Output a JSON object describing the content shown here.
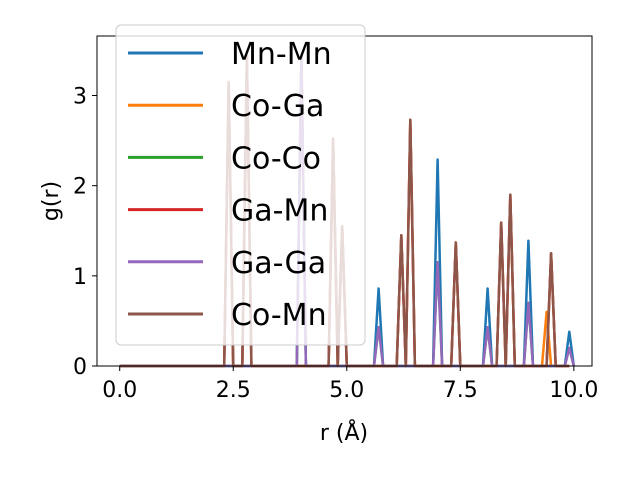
{
  "chart_data": {
    "type": "line",
    "xlabel": "r (Å)",
    "ylabel": "g(r)",
    "xlim": [
      -0.5,
      10.4
    ],
    "ylim": [
      0,
      3.66
    ],
    "xticks": [
      0.0,
      2.5,
      5.0,
      7.5,
      10.0
    ],
    "xtick_labels": [
      "0.0",
      "2.5",
      "5.0",
      "7.5",
      "10.0"
    ],
    "yticks": [
      0,
      1,
      2,
      3
    ],
    "ytick_labels": [
      "0",
      "1",
      "2",
      "3"
    ],
    "grid": false,
    "legend_position": "top-left",
    "series": [
      {
        "name": "Mn-Mn",
        "color": "#1f77b4",
        "peaks": [
          [
            4.0,
            3.45
          ],
          [
            5.7,
            0.86
          ],
          [
            7.0,
            2.29
          ],
          [
            8.1,
            0.86
          ],
          [
            9.0,
            1.39
          ],
          [
            9.9,
            0.38
          ]
        ]
      },
      {
        "name": "Co-Ga",
        "color": "#ff7f0e",
        "peaks": [
          [
            2.4,
            3.15
          ],
          [
            2.8,
            3.45
          ],
          [
            4.7,
            2.52
          ],
          [
            4.9,
            1.55
          ],
          [
            6.2,
            1.45
          ],
          [
            6.4,
            2.73
          ],
          [
            7.4,
            1.37
          ],
          [
            8.4,
            1.59
          ],
          [
            8.6,
            1.9
          ],
          [
            9.4,
            0.6
          ],
          [
            9.5,
            1.25
          ]
        ]
      },
      {
        "name": "Co-Co",
        "color": "#2ca02c",
        "peaks": [
          [
            4.0,
            3.45
          ],
          [
            5.7,
            0.43
          ],
          [
            7.0,
            1.15
          ],
          [
            8.1,
            0.43
          ],
          [
            9.0,
            0.7
          ],
          [
            9.9,
            0.2
          ]
        ]
      },
      {
        "name": "Ga-Mn",
        "color": "#d62728",
        "peaks": [
          [
            2.4,
            3.15
          ],
          [
            2.8,
            3.45
          ],
          [
            4.7,
            2.52
          ],
          [
            4.9,
            1.55
          ],
          [
            6.2,
            1.45
          ],
          [
            6.4,
            2.73
          ],
          [
            7.4,
            1.37
          ],
          [
            8.4,
            1.59
          ],
          [
            8.6,
            1.9
          ],
          [
            9.5,
            1.25
          ]
        ]
      },
      {
        "name": "Ga-Ga",
        "color": "#9467bd",
        "peaks": [
          [
            4.0,
            3.45
          ],
          [
            5.7,
            0.43
          ],
          [
            7.0,
            1.15
          ],
          [
            8.1,
            0.43
          ],
          [
            9.0,
            0.7
          ],
          [
            9.9,
            0.2
          ]
        ]
      },
      {
        "name": "Co-Mn",
        "color": "#8c564b",
        "peaks": [
          [
            2.4,
            3.15
          ],
          [
            2.8,
            3.45
          ],
          [
            4.7,
            2.52
          ],
          [
            4.9,
            1.55
          ],
          [
            6.2,
            1.45
          ],
          [
            6.4,
            2.73
          ],
          [
            7.4,
            1.37
          ],
          [
            8.4,
            1.59
          ],
          [
            8.6,
            1.9
          ],
          [
            9.5,
            1.25
          ]
        ]
      }
    ]
  }
}
